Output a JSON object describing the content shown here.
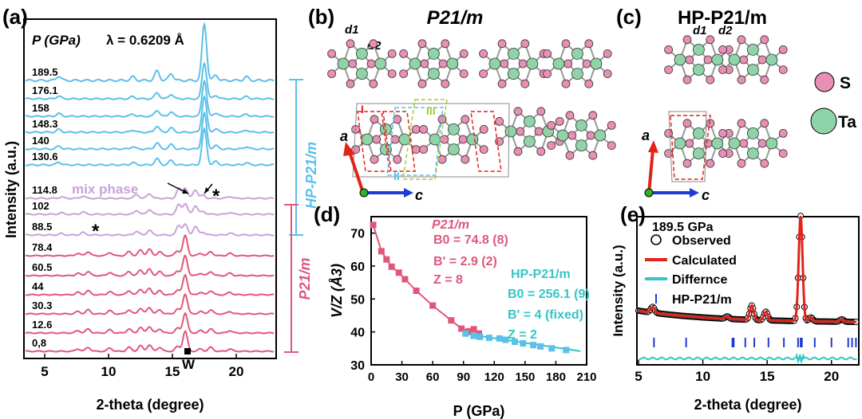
{
  "colors": {
    "blue": "#5bc0eb",
    "purple": "#c9a2d9",
    "pink": "#e0577c",
    "s_atom": "#e98fb4",
    "ta_atom": "#8fd3a8",
    "cyan": "#34c6c6",
    "red": "#e2231a",
    "darkblue": "#1f3bd1"
  },
  "panels": {
    "a": "(a)",
    "b": "(b)",
    "c": "(c)",
    "d": "(d)",
    "e": "(e)"
  },
  "panel_a": {
    "pressure_label": "P (GPa)",
    "lambda_label": "λ = 0.6209 Å",
    "mix_phase": "mix phase",
    "hp_label": "HP-P21/m",
    "p21m_label": "P21/m",
    "w_label": "W",
    "star": "*"
  },
  "panel_b": {
    "title": "P21/m",
    "d1": "d1",
    "d2": "d2",
    "roman1": "I",
    "roman2": "II",
    "roman3": "III",
    "axis_a": "a",
    "axis_c": "c"
  },
  "panel_c": {
    "title": "HP-P21/m",
    "d1": "d1",
    "d2": "d2",
    "axis_a": "a",
    "axis_c": "c"
  },
  "legend_atoms": {
    "s": "S",
    "ta": "Ta"
  },
  "panel_d_labels": {
    "p21m": "P21/m",
    "b0_p21m": "B0 = 74.8 (8)",
    "bp_p21m": "B' = 2.9 (2)",
    "z_p21m": "Z = 8",
    "hp": "HP-P21/m",
    "b0_hp": "B0 = 256.1 (9)",
    "bp_hp": "B' = 4 (fixed)",
    "z_hp": "Z = 2"
  },
  "panel_e_labels": {
    "pressure": "189.5 GPa",
    "observed": "Observed",
    "calculated": "Calculated",
    "difference": "Differnce",
    "ticks": "HP-P21/m"
  },
  "chart_data": [
    {
      "id": "a",
      "type": "line",
      "xlabel": "2-theta (degree)",
      "ylabel": "Intensity (a.u.)",
      "xlim": [
        3.5,
        23
      ],
      "xticks": [
        5,
        10,
        15,
        20
      ],
      "pressures": [
        "189.5",
        "176.1",
        "158",
        "148.3",
        "140",
        "130.6",
        "114.8",
        "102",
        "88.5",
        "78.4",
        "60.5",
        "44",
        "30.3",
        "12.6",
        "0,8"
      ],
      "phase": [
        "HP",
        "HP",
        "HP",
        "HP",
        "HP",
        "HP",
        "mix",
        "mix",
        "mix",
        "P21",
        "P21",
        "P21",
        "P21",
        "P21",
        "P21"
      ],
      "peaks_hp": [
        [
          6.1,
          0.25
        ],
        [
          11.9,
          0.2
        ],
        [
          13.8,
          0.55
        ],
        [
          14.9,
          0.4
        ],
        [
          17.5,
          3.2
        ],
        [
          18.4,
          0.3
        ],
        [
          20.8,
          0.2
        ]
      ],
      "peaks_mix": [
        [
          6.3,
          0.15
        ],
        [
          8.0,
          0.25
        ],
        [
          12.2,
          0.4
        ],
        [
          13.2,
          0.5
        ],
        [
          15.5,
          1.0
        ],
        [
          16.0,
          1.1
        ],
        [
          16.8,
          0.9
        ],
        [
          17.4,
          0.3
        ],
        [
          19.5,
          0.2
        ]
      ],
      "peaks_p21": [
        [
          7.6,
          0.3
        ],
        [
          8.4,
          0.5
        ],
        [
          10.1,
          0.4
        ],
        [
          11.6,
          0.5
        ],
        [
          12.5,
          0.7
        ],
        [
          13.2,
          0.8
        ],
        [
          14.0,
          0.5
        ],
        [
          15.4,
          0.6
        ],
        [
          16.0,
          2.5
        ],
        [
          17.2,
          0.3
        ],
        [
          18.0,
          0.5
        ],
        [
          19.5,
          0.3
        ]
      ]
    },
    {
      "id": "d",
      "type": "scatter",
      "xlabel": "P (GPa)",
      "ylabel": "V/Z (Å3)",
      "xlim": [
        0,
        210
      ],
      "ylim": [
        30,
        75
      ],
      "xticks": [
        0,
        30,
        60,
        90,
        120,
        150,
        180,
        210
      ],
      "yticks": [
        30,
        40,
        50,
        60,
        70
      ],
      "series": [
        {
          "name": "P21/m",
          "x": [
            2,
            10,
            15,
            20,
            27,
            33,
            44,
            60,
            78,
            88,
            95,
            100,
            105
          ],
          "y": [
            72.5,
            64.5,
            62.0,
            59.8,
            58.0,
            56.0,
            52.5,
            48.0,
            43.5,
            41.0,
            40.2,
            40.8,
            39.5
          ]
        },
        {
          "name": "HP-P21/m",
          "x": [
            92,
            100,
            106,
            115,
            125,
            131,
            140,
            148,
            158,
            165,
            176,
            190
          ],
          "y": [
            39.5,
            38.8,
            38.5,
            38.2,
            38.0,
            37.6,
            37.0,
            36.5,
            36.0,
            35.6,
            35.0,
            34.5
          ]
        }
      ]
    },
    {
      "id": "e",
      "type": "line",
      "xlabel": "2-theta (degree)",
      "ylabel": "Intensity (a.u.)",
      "xlim": [
        5,
        22
      ],
      "xticks": [
        5,
        10,
        15,
        20
      ],
      "peaks": [
        [
          6.1,
          0.12
        ],
        [
          11.9,
          0.05
        ],
        [
          13.8,
          0.3
        ],
        [
          14.9,
          0.18
        ],
        [
          17.6,
          2.2
        ],
        [
          18.4,
          0.08
        ],
        [
          20.8,
          0.05
        ]
      ],
      "bragg_ticks": [
        6.2,
        8.7,
        12.3,
        12.4,
        13.3,
        14.0,
        15.1,
        16.3,
        17.4,
        17.6,
        17.7,
        18.7,
        20.0,
        21.3,
        21.6,
        21.9
      ]
    }
  ]
}
